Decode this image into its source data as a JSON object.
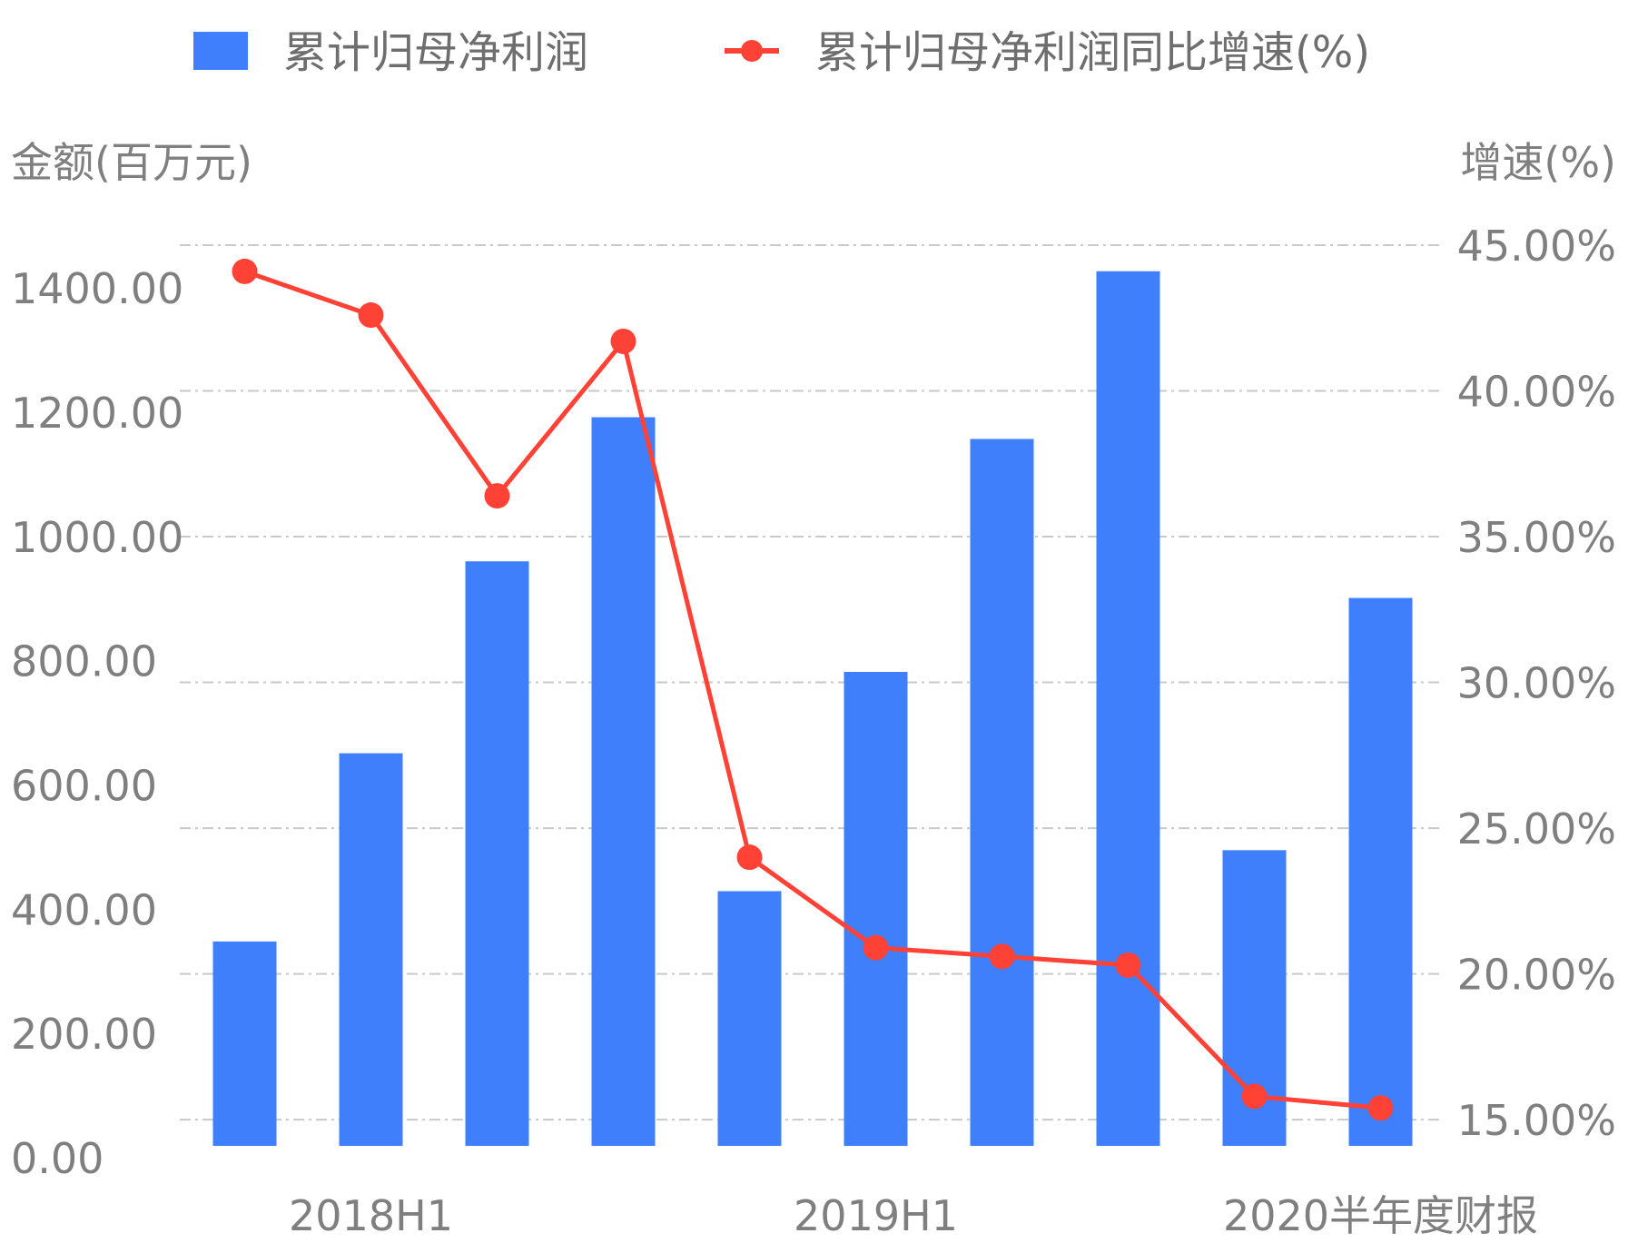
{
  "chart_data": {
    "type": "bar",
    "categories": [
      "",
      "2018H1",
      "",
      "",
      "",
      "2019H1",
      "",
      "",
      "",
      "2020半年度财报"
    ],
    "series": [
      {
        "name": "累计归母净利润",
        "kind": "bar",
        "axis": "left",
        "color": "#3f7ffc",
        "values": [
          329,
          632,
          941,
          1173,
          410,
          763,
          1138,
          1408,
          476,
          882
        ]
      },
      {
        "name": "累计归母净利润同比增速(%)",
        "kind": "line",
        "axis": "right",
        "color": "#ff4136",
        "values": [
          44.1,
          42.6,
          36.4,
          41.7,
          24.0,
          20.9,
          20.6,
          20.3,
          15.8,
          15.4
        ]
      }
    ],
    "left_axis": {
      "title": "金额(百万元)",
      "ylim": [
        0,
        1450
      ],
      "ticks": [
        "0.00",
        "200.00",
        "400.00",
        "600.00",
        "800.00",
        "1000.00",
        "1200.00",
        "1400.00"
      ],
      "tick_values": [
        0,
        200,
        400,
        600,
        800,
        1000,
        1200,
        1400
      ]
    },
    "right_axis": {
      "title": "增速(%)",
      "ylim": [
        14.1,
        45
      ],
      "ticks": [
        "15.00%",
        "20.00%",
        "25.00%",
        "30.00%",
        "35.00%",
        "40.00%",
        "45.00%"
      ],
      "tick_values": [
        15,
        20,
        25,
        30,
        35,
        40,
        45
      ]
    },
    "grid": true,
    "legend_position": "top-center"
  }
}
